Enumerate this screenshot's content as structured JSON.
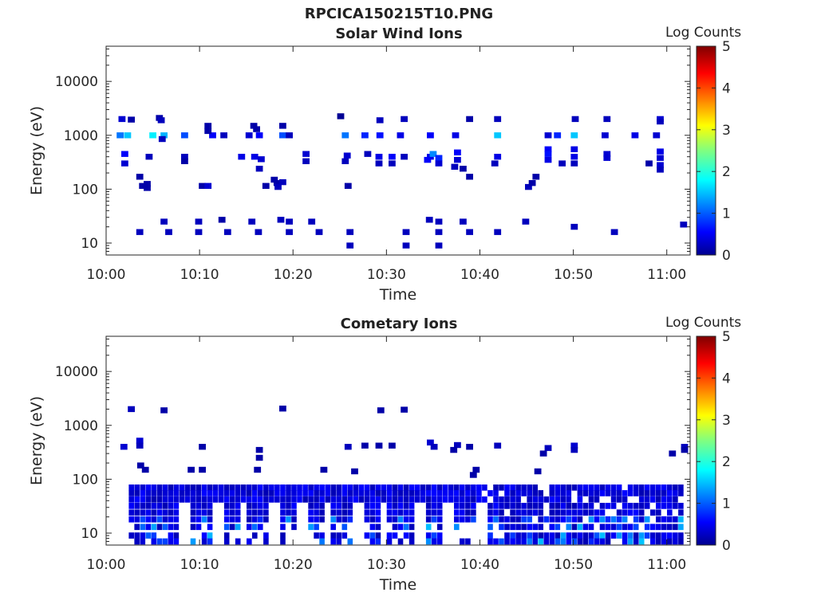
{
  "figure_title": "RPCICA150215T10.PNG",
  "chart_data": [
    {
      "type": "heatmap",
      "title": "Solar Wind Ions",
      "xlabel": "Time",
      "ylabel": "Energy (eV)",
      "x_ticks": [
        "10:00",
        "10:10",
        "10:20",
        "10:30",
        "10:40",
        "10:50",
        "11:00"
      ],
      "x_range_minutes": [
        0,
        62.5
      ],
      "y_ticks": [
        10,
        100,
        1000,
        10000
      ],
      "y_tick_labels": [
        "10",
        "100",
        "1000",
        "10000"
      ],
      "ylim": [
        6,
        45000
      ],
      "y_scale": "log",
      "colorbar": {
        "label": "Log Counts",
        "range": [
          0,
          5
        ],
        "ticks": [
          "0",
          "1",
          "2",
          "3",
          "4",
          "5"
        ],
        "colormap": "jet"
      },
      "cells": [
        [
          1.7,
          2000,
          0.4
        ],
        [
          2.7,
          1950,
          0.2
        ],
        [
          5.7,
          2100,
          0.2
        ],
        [
          5.9,
          1900,
          0.3
        ],
        [
          1.5,
          1000,
          1.2
        ],
        [
          2.3,
          1000,
          1.6
        ],
        [
          5.0,
          1000,
          1.8
        ],
        [
          6.2,
          1000,
          1.5
        ],
        [
          6.0,
          850,
          0.3
        ],
        [
          8.4,
          1000,
          1.0
        ],
        [
          11.4,
          1000,
          0.6
        ],
        [
          12.6,
          1000,
          0.3
        ],
        [
          15.3,
          1000,
          0.4
        ],
        [
          16.4,
          1000,
          0.6
        ],
        [
          18.9,
          1000,
          1.0
        ],
        [
          19.6,
          1000,
          0.3
        ],
        [
          25.6,
          1000,
          1.2
        ],
        [
          27.7,
          1000,
          0.8
        ],
        [
          29.3,
          1000,
          0.7
        ],
        [
          31.5,
          1000,
          0.5
        ],
        [
          34.7,
          1000,
          0.6
        ],
        [
          37.4,
          1000,
          0.5
        ],
        [
          41.9,
          1000,
          1.6
        ],
        [
          47.3,
          1000,
          0.4
        ],
        [
          48.3,
          1000,
          0.8
        ],
        [
          50.1,
          1000,
          1.6
        ],
        [
          53.4,
          1000,
          0.4
        ],
        [
          56.6,
          1000,
          0.5
        ],
        [
          58.9,
          1000,
          0.4
        ],
        [
          10.9,
          1500,
          0.2
        ],
        [
          10.9,
          1200,
          0.2
        ],
        [
          15.8,
          1500,
          0.2
        ],
        [
          16.1,
          1300,
          0.2
        ],
        [
          18.9,
          1500,
          0.2
        ],
        [
          25.1,
          2250,
          0.1
        ],
        [
          29.3,
          1900,
          0.3
        ],
        [
          31.9,
          2000,
          0.3
        ],
        [
          38.9,
          2000,
          0.2
        ],
        [
          41.9,
          2000,
          0.3
        ],
        [
          50.2,
          2000,
          0.3
        ],
        [
          53.6,
          2000,
          0.3
        ],
        [
          59.3,
          2000,
          0.4
        ],
        [
          59.3,
          1800,
          0.3
        ],
        [
          2.0,
          450,
          0.6
        ],
        [
          2.0,
          300,
          0.4
        ],
        [
          4.6,
          400,
          0.3
        ],
        [
          8.4,
          400,
          0.3
        ],
        [
          8.4,
          330,
          0.2
        ],
        [
          14.5,
          400,
          0.5
        ],
        [
          15.9,
          400,
          0.5
        ],
        [
          16.6,
          360,
          0.4
        ],
        [
          16.4,
          240,
          0.3
        ],
        [
          21.4,
          450,
          0.4
        ],
        [
          21.4,
          330,
          0.3
        ],
        [
          25.8,
          420,
          0.4
        ],
        [
          25.6,
          330,
          0.3
        ],
        [
          28.0,
          450,
          0.3
        ],
        [
          29.2,
          400,
          0.5
        ],
        [
          29.2,
          300,
          0.3
        ],
        [
          30.6,
          400,
          0.6
        ],
        [
          30.6,
          300,
          0.3
        ],
        [
          31.9,
          400,
          0.3
        ],
        [
          34.7,
          400,
          0.5
        ],
        [
          34.4,
          350,
          0.6
        ],
        [
          35.0,
          450,
          1.3
        ],
        [
          35.6,
          380,
          0.8
        ],
        [
          35.6,
          300,
          0.4
        ],
        [
          37.6,
          480,
          0.6
        ],
        [
          37.6,
          350,
          0.4
        ],
        [
          37.3,
          260,
          0.3
        ],
        [
          38.2,
          240,
          0.2
        ],
        [
          41.9,
          400,
          0.5
        ],
        [
          41.6,
          300,
          0.3
        ],
        [
          47.3,
          550,
          0.6
        ],
        [
          47.3,
          450,
          0.7
        ],
        [
          47.3,
          350,
          0.5
        ],
        [
          48.8,
          300,
          0.3
        ],
        [
          50.1,
          550,
          0.5
        ],
        [
          50.1,
          400,
          0.5
        ],
        [
          50.1,
          300,
          0.3
        ],
        [
          53.6,
          450,
          0.4
        ],
        [
          53.6,
          380,
          0.4
        ],
        [
          58.1,
          300,
          0.2
        ],
        [
          59.3,
          500,
          0.5
        ],
        [
          59.3,
          380,
          0.4
        ],
        [
          59.3,
          280,
          0.4
        ],
        [
          59.3,
          230,
          0.3
        ],
        [
          38.9,
          170,
          0.2
        ],
        [
          3.6,
          170,
          0.2
        ],
        [
          3.9,
          115,
          0.2
        ],
        [
          4.4,
          125,
          0.2
        ],
        [
          4.4,
          105,
          0.2
        ],
        [
          10.3,
          115,
          0.2
        ],
        [
          10.9,
          115,
          0.4
        ],
        [
          17.1,
          115,
          0.2
        ],
        [
          18.0,
          150,
          0.2
        ],
        [
          18.3,
          130,
          0.2
        ],
        [
          18.4,
          110,
          0.3
        ],
        [
          18.9,
          135,
          0.3
        ],
        [
          25.9,
          115,
          0.2
        ],
        [
          45.2,
          110,
          0.3
        ],
        [
          45.6,
          130,
          0.2
        ],
        [
          46.0,
          170,
          0.2
        ],
        [
          3.6,
          16,
          0.3
        ],
        [
          6.2,
          25,
          0.3
        ],
        [
          6.7,
          16,
          0.3
        ],
        [
          9.9,
          25,
          0.3
        ],
        [
          9.9,
          16,
          0.3
        ],
        [
          12.4,
          27,
          0.2
        ],
        [
          13.0,
          16,
          0.3
        ],
        [
          15.6,
          25,
          0.3
        ],
        [
          16.3,
          16,
          0.3
        ],
        [
          18.7,
          27,
          0.3
        ],
        [
          19.6,
          25,
          0.3
        ],
        [
          19.6,
          16,
          0.3
        ],
        [
          22.0,
          25,
          0.3
        ],
        [
          22.8,
          16,
          0.3
        ],
        [
          26.1,
          16,
          0.3
        ],
        [
          26.1,
          9,
          0.3
        ],
        [
          32.1,
          16,
          0.3
        ],
        [
          32.1,
          9,
          0.3
        ],
        [
          34.6,
          27,
          0.3
        ],
        [
          35.6,
          25,
          0.3
        ],
        [
          35.6,
          16,
          0.3
        ],
        [
          35.6,
          9,
          0.3
        ],
        [
          38.2,
          25,
          0.3
        ],
        [
          38.9,
          16,
          0.3
        ],
        [
          41.9,
          16,
          0.3
        ],
        [
          44.9,
          25,
          0.3
        ],
        [
          50.1,
          20,
          0.3
        ],
        [
          54.4,
          16,
          0.3
        ],
        [
          61.8,
          22,
          0.3
        ]
      ]
    },
    {
      "type": "heatmap",
      "title": "Cometary Ions",
      "xlabel": "Time",
      "ylabel": "Energy (eV)",
      "x_ticks": [
        "10:00",
        "10:10",
        "10:20",
        "10:30",
        "10:40",
        "10:50",
        "11:00"
      ],
      "x_range_minutes": [
        0,
        62.5
      ],
      "y_ticks": [
        10,
        100,
        1000,
        10000
      ],
      "y_tick_labels": [
        "10",
        "100",
        "1000",
        "10000"
      ],
      "ylim": [
        6,
        45000
      ],
      "y_scale": "log",
      "colorbar": {
        "label": "Log Counts",
        "range": [
          0,
          5
        ],
        "ticks": [
          "0",
          "1",
          "2",
          "3",
          "4",
          "5"
        ],
        "colormap": "jet"
      },
      "cells": [
        [
          2.7,
          2000,
          0.3
        ],
        [
          6.2,
          1900,
          0.2
        ],
        [
          18.9,
          2050,
          0.2
        ],
        [
          29.4,
          1900,
          0.2
        ],
        [
          31.9,
          1950,
          0.2
        ],
        [
          1.9,
          400,
          0.4
        ],
        [
          3.6,
          520,
          0.4
        ],
        [
          3.6,
          420,
          0.3
        ],
        [
          10.3,
          400,
          0.2
        ],
        [
          16.4,
          350,
          0.2
        ],
        [
          16.4,
          250,
          0.2
        ],
        [
          25.9,
          400,
          0.3
        ],
        [
          27.7,
          420,
          0.2
        ],
        [
          29.2,
          420,
          0.2
        ],
        [
          30.6,
          420,
          0.2
        ],
        [
          34.7,
          480,
          0.4
        ],
        [
          35.1,
          400,
          0.3
        ],
        [
          37.6,
          430,
          0.3
        ],
        [
          37.2,
          350,
          0.2
        ],
        [
          38.9,
          400,
          0.2
        ],
        [
          41.9,
          420,
          0.3
        ],
        [
          47.3,
          380,
          0.3
        ],
        [
          46.8,
          300,
          0.2
        ],
        [
          50.1,
          420,
          0.4
        ],
        [
          50.1,
          350,
          0.3
        ],
        [
          60.6,
          300,
          0.2
        ],
        [
          61.9,
          400,
          0.3
        ],
        [
          61.9,
          350,
          0.2
        ],
        [
          3.7,
          180,
          0.2
        ],
        [
          4.2,
          150,
          0.2
        ],
        [
          9.1,
          150,
          0.2
        ],
        [
          10.3,
          150,
          0.2
        ],
        [
          16.2,
          150,
          0.2
        ],
        [
          23.3,
          150,
          0.2
        ],
        [
          26.6,
          140,
          0.2
        ],
        [
          39.6,
          150,
          0.2
        ],
        [
          39.3,
          120,
          0.2
        ],
        [
          46.2,
          140,
          0.2
        ]
      ]
    }
  ]
}
